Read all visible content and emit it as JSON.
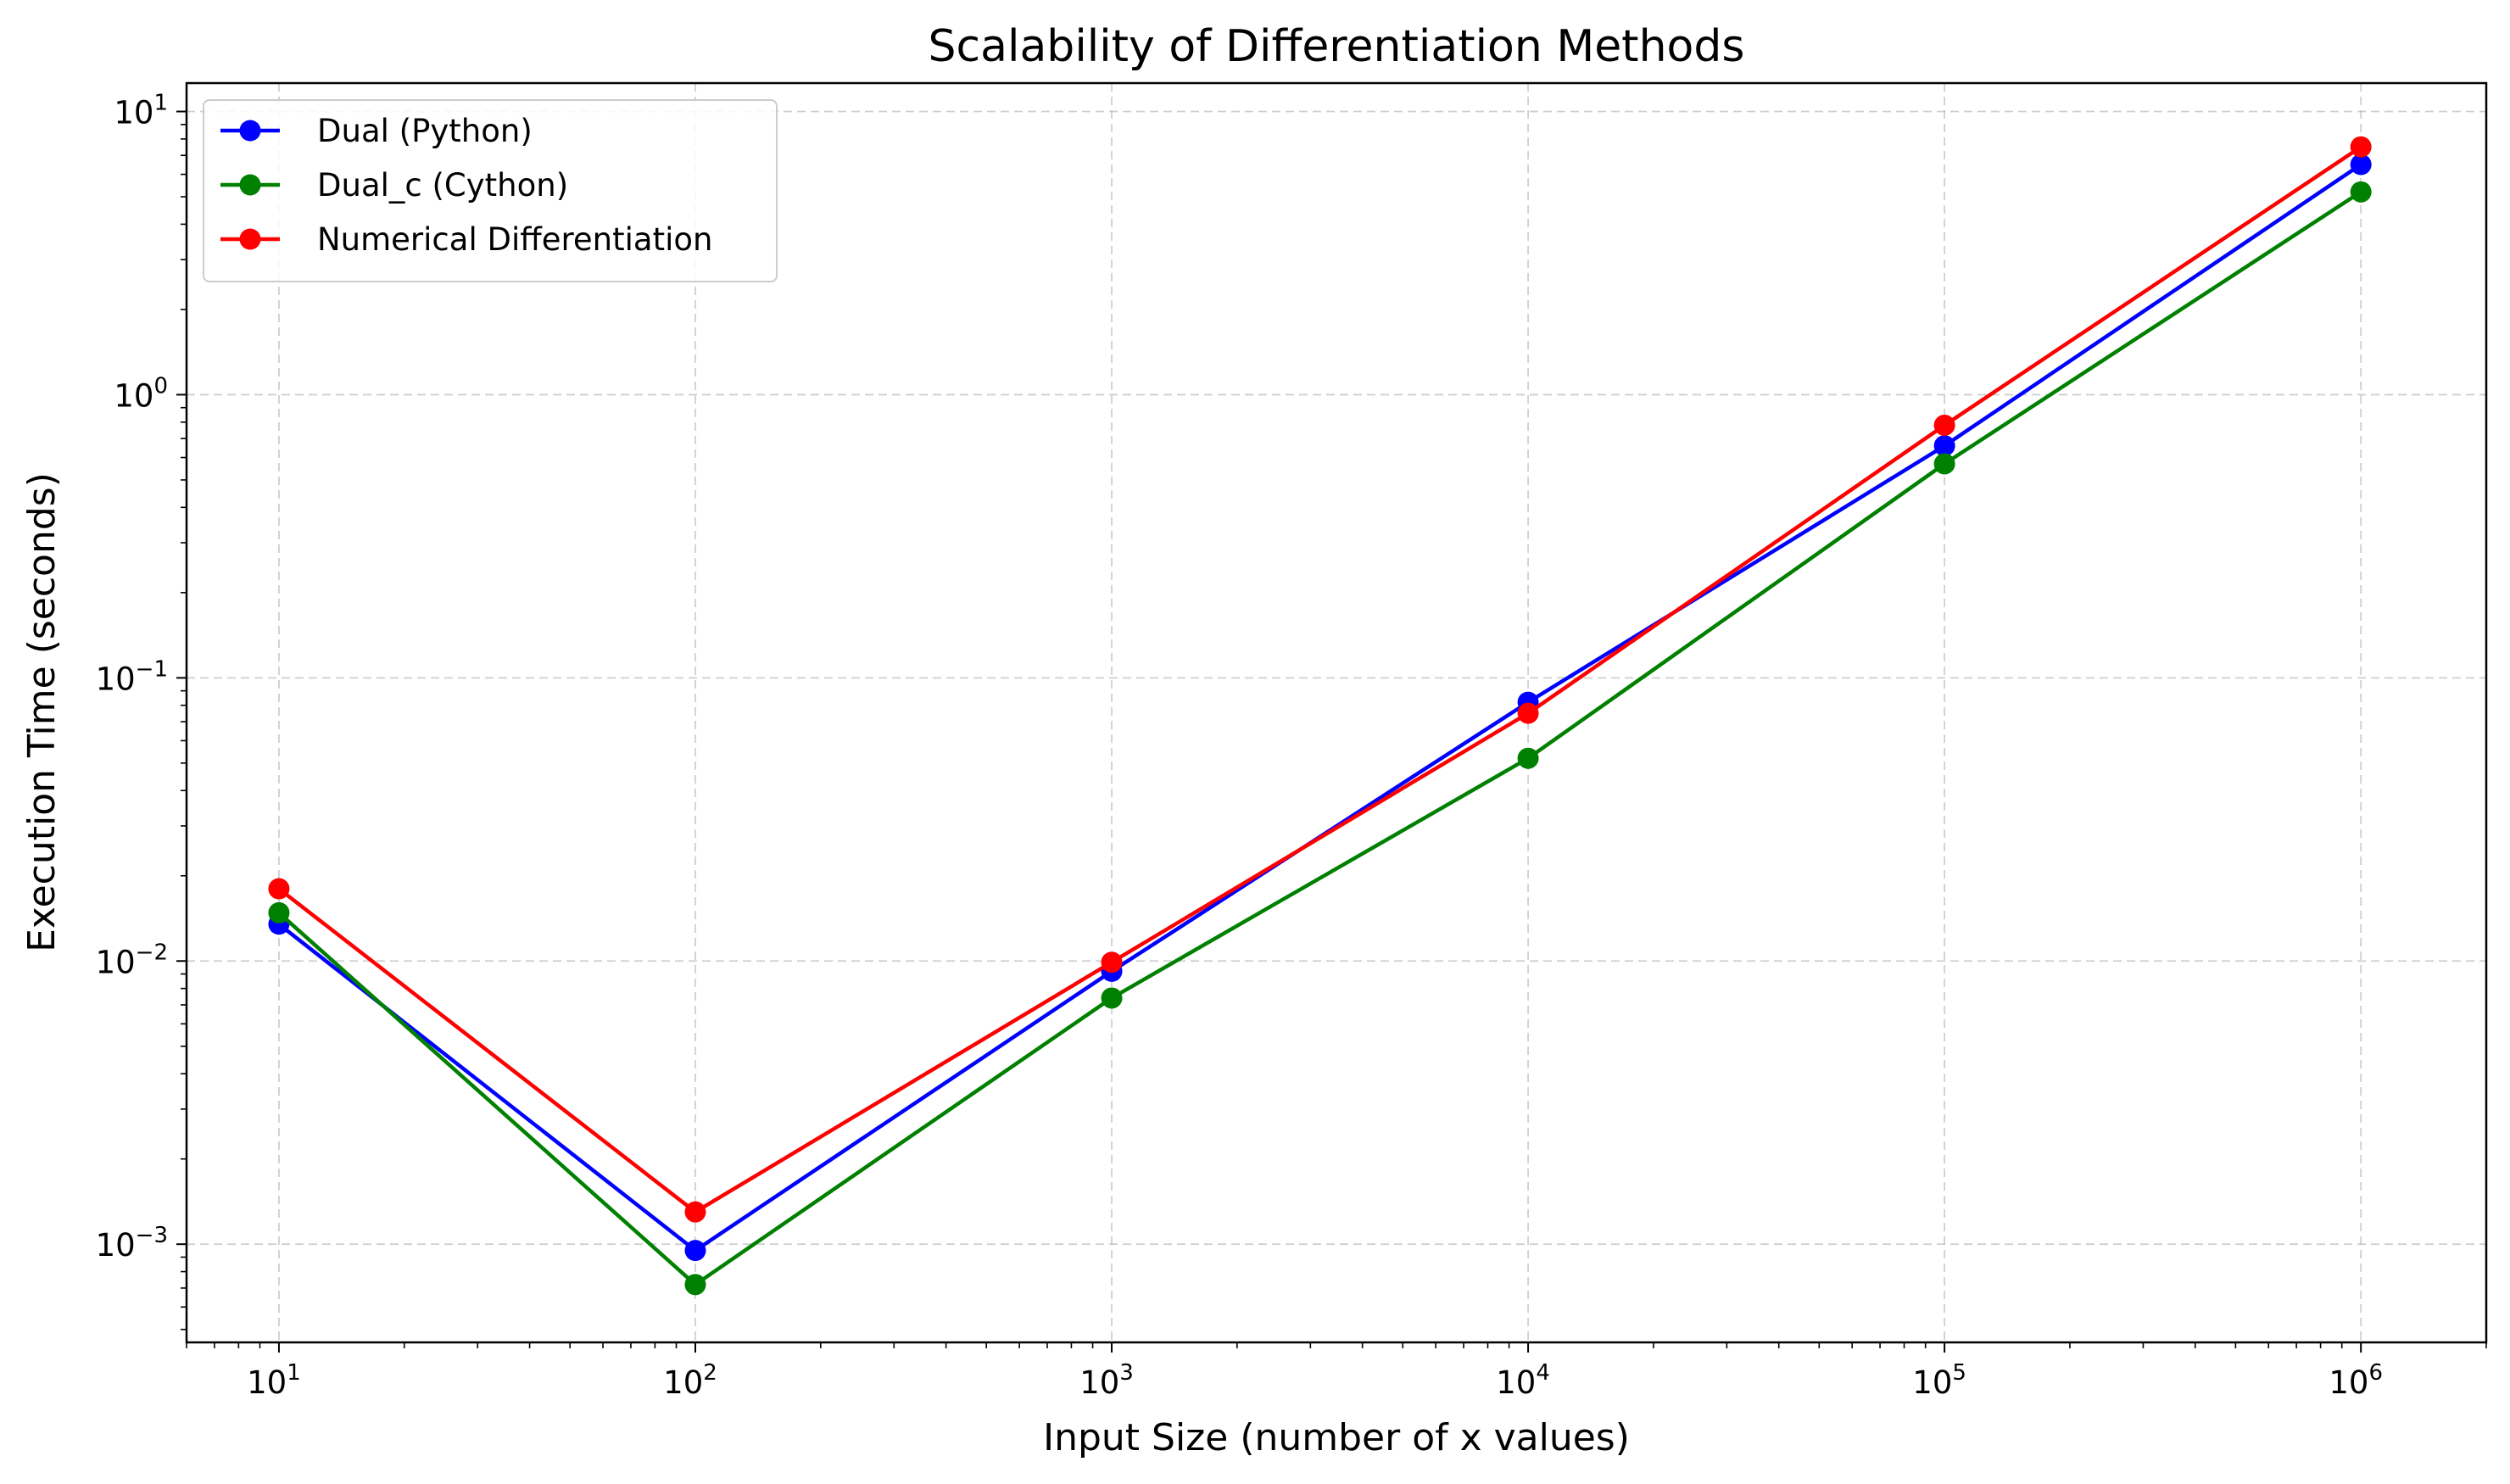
{
  "chart_data": {
    "type": "line",
    "title": "Scalability of Differentiation Methods",
    "xlabel": "Input Size (number of x values)",
    "ylabel": "Execution Time (seconds)",
    "xscale": "log",
    "yscale": "log",
    "xlim": [
      6,
      2000000
    ],
    "ylim": [
      0.00045,
      12.6
    ],
    "x": [
      10,
      100,
      1000,
      10000,
      100000,
      1000000
    ],
    "x_ticks": [
      {
        "value": 10,
        "base": "10",
        "exp": "1"
      },
      {
        "value": 100,
        "base": "10",
        "exp": "2"
      },
      {
        "value": 1000,
        "base": "10",
        "exp": "3"
      },
      {
        "value": 10000,
        "base": "10",
        "exp": "4"
      },
      {
        "value": 100000,
        "base": "10",
        "exp": "5"
      },
      {
        "value": 1000000,
        "base": "10",
        "exp": "6"
      }
    ],
    "y_ticks": [
      {
        "value": 0.001,
        "base": "10",
        "exp": "−3"
      },
      {
        "value": 0.01,
        "base": "10",
        "exp": "−2"
      },
      {
        "value": 0.1,
        "base": "10",
        "exp": "−1"
      },
      {
        "value": 1,
        "base": "10",
        "exp": "0"
      },
      {
        "value": 10,
        "base": "10",
        "exp": "1"
      }
    ],
    "grid": true,
    "legend_position": "top-left",
    "series": [
      {
        "name": "Dual (Python)",
        "color": "#0000ff",
        "values": [
          0.0135,
          0.00095,
          0.0092,
          0.082,
          0.66,
          6.5
        ]
      },
      {
        "name": "Dual_c (Cython)",
        "color": "#008000",
        "values": [
          0.0148,
          0.00072,
          0.0074,
          0.052,
          0.57,
          5.2
        ]
      },
      {
        "name": "Numerical Differentiation",
        "color": "#ff0000",
        "values": [
          0.018,
          0.0013,
          0.0099,
          0.075,
          0.78,
          7.5
        ]
      }
    ]
  }
}
